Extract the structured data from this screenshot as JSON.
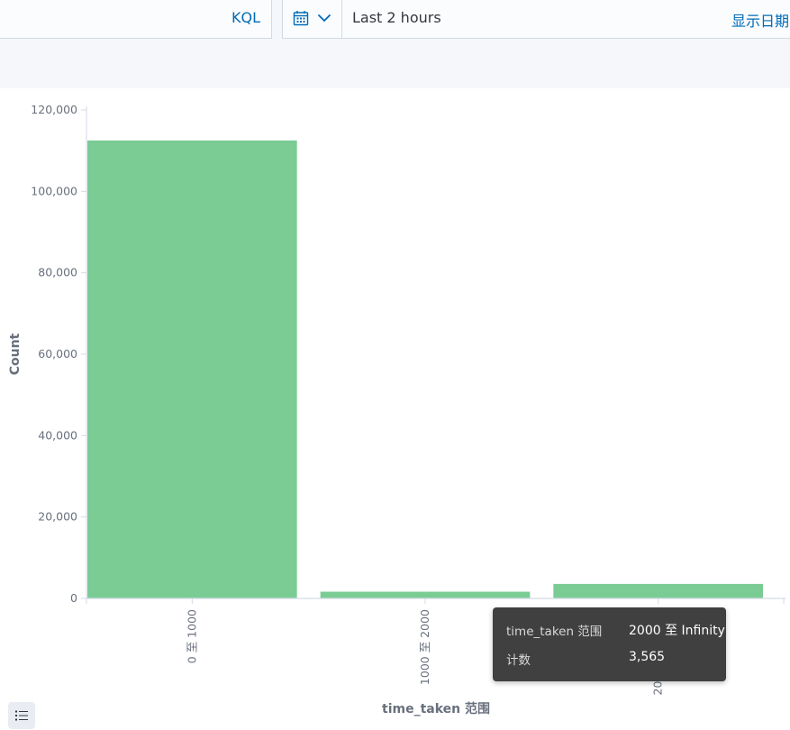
{
  "query_bar": {
    "language_button": "KQL"
  },
  "date_picker": {
    "calendar_icon": "calendar-icon",
    "chevron_icon": "chevron-down-icon",
    "range_text": "Last 2 hours",
    "show_dates_label": "显示日期"
  },
  "chart_data": {
    "type": "bar",
    "categories": [
      "0 至 1000",
      "1000 至 2000",
      "2000 至 Infinity"
    ],
    "values": [
      112500,
      1650,
      3565
    ],
    "xlabel": "time_taken 范围",
    "ylabel": "Count",
    "ylim": [
      0,
      120000
    ],
    "yticks": [
      0,
      20000,
      40000,
      60000,
      80000,
      100000,
      120000
    ],
    "ytick_labels": [
      "0",
      "20,000",
      "40,000",
      "60,000",
      "80,000",
      "100,000",
      "120,000"
    ],
    "bar_color": "#7acc94",
    "grid": false
  },
  "tooltip": {
    "row1_key": "time_taken 范围",
    "row1_value": "2000 至 Infinity",
    "row2_key": "计数",
    "row2_value": "3,565"
  },
  "legend_toggle_icon": "list-icon"
}
